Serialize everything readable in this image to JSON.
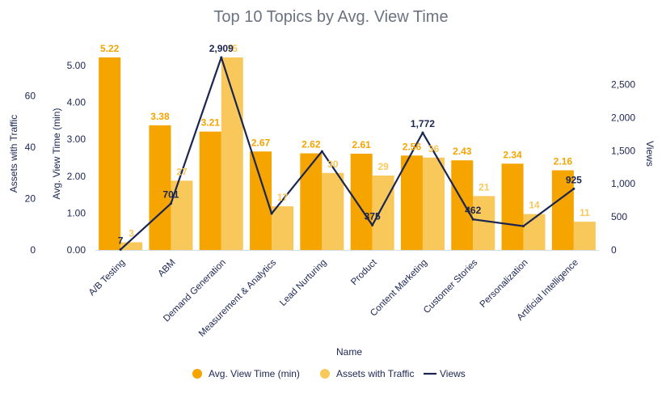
{
  "chart_data": {
    "type": "bar",
    "title": "Top 10 Topics by Avg. View Time",
    "xlabel": "Name",
    "ylabel_left_outer": "Assets with Traffic",
    "ylabel_left_inner": "Avg. View Time (min)",
    "ylabel_right": "Views",
    "categories": [
      "A/B Testing",
      "ABM",
      "Demand Generation",
      "Measurement & Analytics",
      "Lead Nurturing",
      "Product",
      "Content Marketing",
      "Customer Stories",
      "Personalization",
      "Artificial Intelligence"
    ],
    "series": [
      {
        "name": "Avg. View Time (min)",
        "type": "bar",
        "axis": "avg",
        "color": "#f5a400",
        "values": [
          5.22,
          3.38,
          3.21,
          2.67,
          2.62,
          2.61,
          2.56,
          2.43,
          2.34,
          2.16
        ],
        "labels": [
          "5.22",
          "3.38",
          "3.21",
          "2.67",
          "2.62",
          "2.61",
          "2.56",
          "2.43",
          "2.34",
          "2.16"
        ]
      },
      {
        "name": "Assets with Traffic",
        "type": "bar",
        "axis": "assets",
        "color": "#f9c85a",
        "values": [
          3,
          27,
          75,
          17,
          30,
          29,
          36,
          21,
          14,
          11
        ],
        "labels": [
          "3",
          "27",
          "75",
          "17",
          "30",
          "29",
          "36",
          "21",
          "14",
          "11"
        ]
      },
      {
        "name": "Views",
        "type": "line",
        "axis": "views",
        "color": "#1b2552",
        "values": [
          7,
          701,
          2909,
          550,
          1490,
          375,
          1772,
          462,
          360,
          925
        ],
        "labels": [
          "7",
          "701",
          "2,909",
          "",
          "",
          "375",
          "1,772",
          "462",
          "",
          "925"
        ]
      }
    ],
    "axes": {
      "avg": {
        "ylim": [
          0,
          5.22
        ],
        "ticks": [
          0,
          1,
          2,
          3,
          4,
          5
        ],
        "tick_labels": [
          "0.00",
          "1.00",
          "2.00",
          "3.00",
          "4.00",
          "5.00"
        ]
      },
      "assets": {
        "ylim": [
          0,
          75
        ],
        "ticks": [
          0,
          20,
          40,
          60
        ],
        "tick_labels": [
          "0",
          "20",
          "40",
          "60"
        ]
      },
      "views": {
        "ylim": [
          0,
          2909
        ],
        "ticks": [
          0,
          500,
          1000,
          1500,
          2000,
          2500
        ],
        "tick_labels": [
          "0",
          "500",
          "1,000",
          "1,500",
          "2,000",
          "2,500"
        ]
      }
    },
    "grid": false,
    "legend_position": "bottom-center"
  }
}
